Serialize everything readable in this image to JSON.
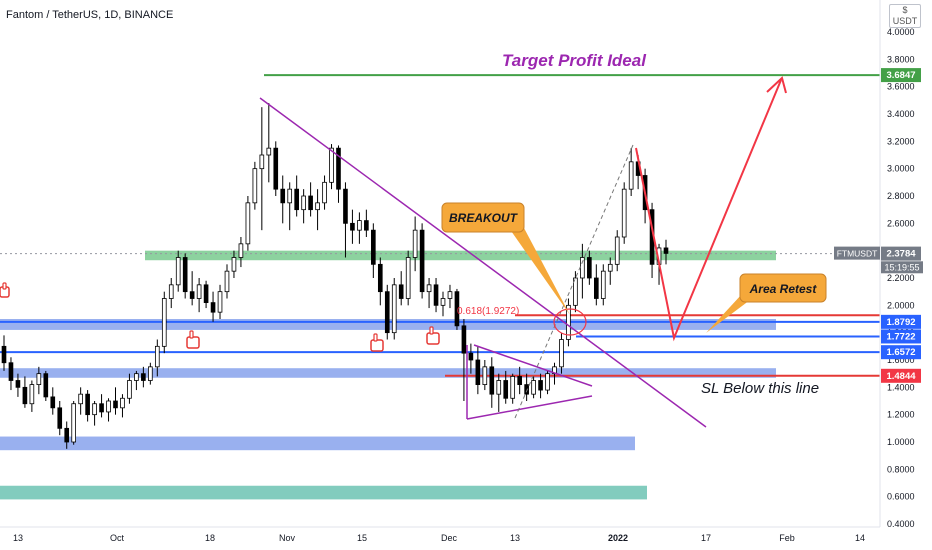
{
  "header": {
    "symbol_title": "Fantom / TetherUS, 1D, BINANCE",
    "currency_badge_top": "$",
    "currency_badge_bottom": "USDT"
  },
  "colors": {
    "up": "#26a69a",
    "down": "#ef5350",
    "candle": "#000000",
    "target_line": "#43a047",
    "retest_line": "#e53935",
    "level_line": "#2962ff",
    "band_blue": "#6d8ee8",
    "band_green": "#5bbf76",
    "band_teal": "#4db6a2",
    "trend_purple": "#9c27b0",
    "arrow_red": "#f23645",
    "callout_orange": "#f5a83a",
    "label_purple": "#9c27b0"
  },
  "chart_data": {
    "type": "candlestick",
    "ylim": [
      0.4,
      4.2
    ],
    "y_ticks": [
      "4.0000",
      "3.8000",
      "3.6000",
      "3.4000",
      "3.2000",
      "3.0000",
      "2.8000",
      "2.6000",
      "2.4000",
      "2.2000",
      "2.0000",
      "1.8000",
      "1.6000",
      "1.4000",
      "1.2000",
      "1.0000",
      "0.8000",
      "0.6000",
      "0.4000"
    ],
    "x_ticks": [
      "13",
      "Oct",
      "18",
      "Nov",
      "15",
      "Dec",
      "13",
      "2022",
      "17",
      "Feb",
      "14"
    ],
    "annotations": {
      "target_title": "Target Profit Ideal",
      "breakout": "BREAKOUT",
      "area_retest": "Area Retest",
      "sl_note": "SL Below this line",
      "fib_label": "0.618(1.9272)",
      "fib_value": 1.9272
    },
    "price_labels": [
      {
        "text": "3.6847",
        "value": 3.6847,
        "color": "#43a047"
      },
      {
        "text": "FTMUSDT",
        "value": 2.3784,
        "color": "#ffffff"
      },
      {
        "text": "2.3784",
        "value": 2.3784,
        "color": "#757b86"
      },
      {
        "text": "15:19:55",
        "value": 2.2784,
        "color": "#757b86"
      },
      {
        "text": "1.8792",
        "value": 1.8792,
        "color": "#2962ff"
      },
      {
        "text": "1.7722",
        "value": 1.7722,
        "color": "#2962ff"
      },
      {
        "text": "1.6572",
        "value": 1.6572,
        "color": "#2962ff"
      },
      {
        "text": "1.4844",
        "value": 1.4844,
        "color": "#f23645"
      }
    ],
    "levels": {
      "target": 3.6847,
      "retest_red": 1.9272,
      "blue_1": 1.8792,
      "blue_2": 1.7722,
      "blue_3": 1.6572,
      "sl_red": 1.4844,
      "current": 2.3784
    },
    "bands": [
      {
        "from": 2.33,
        "to": 2.4,
        "kind": "green"
      },
      {
        "from": 1.82,
        "to": 1.9,
        "kind": "blue"
      },
      {
        "from": 1.47,
        "to": 1.54,
        "kind": "blue"
      },
      {
        "from": 0.94,
        "to": 1.04,
        "kind": "blue"
      },
      {
        "from": 0.58,
        "to": 0.68,
        "kind": "teal"
      }
    ],
    "candles": [
      [
        1.7,
        1.78,
        1.52,
        1.58
      ],
      [
        1.58,
        1.62,
        1.38,
        1.45
      ],
      [
        1.45,
        1.5,
        1.33,
        1.4
      ],
      [
        1.4,
        1.48,
        1.25,
        1.28
      ],
      [
        1.28,
        1.45,
        1.22,
        1.42
      ],
      [
        1.42,
        1.55,
        1.35,
        1.5
      ],
      [
        1.5,
        1.52,
        1.3,
        1.33
      ],
      [
        1.33,
        1.4,
        1.2,
        1.25
      ],
      [
        1.25,
        1.3,
        1.05,
        1.1
      ],
      [
        1.1,
        1.15,
        0.95,
        1.0
      ],
      [
        1.0,
        1.3,
        0.98,
        1.28
      ],
      [
        1.28,
        1.4,
        1.2,
        1.35
      ],
      [
        1.35,
        1.38,
        1.15,
        1.2
      ],
      [
        1.2,
        1.3,
        1.12,
        1.28
      ],
      [
        1.28,
        1.35,
        1.18,
        1.22
      ],
      [
        1.22,
        1.32,
        1.15,
        1.3
      ],
      [
        1.3,
        1.4,
        1.2,
        1.25
      ],
      [
        1.25,
        1.35,
        1.18,
        1.32
      ],
      [
        1.32,
        1.5,
        1.28,
        1.45
      ],
      [
        1.45,
        1.52,
        1.38,
        1.5
      ],
      [
        1.5,
        1.55,
        1.4,
        1.45
      ],
      [
        1.45,
        1.58,
        1.42,
        1.55
      ],
      [
        1.55,
        1.75,
        1.48,
        1.7
      ],
      [
        1.7,
        2.1,
        1.65,
        2.05
      ],
      [
        2.05,
        2.2,
        1.98,
        2.15
      ],
      [
        2.15,
        2.4,
        2.1,
        2.35
      ],
      [
        2.35,
        2.38,
        2.05,
        2.1
      ],
      [
        2.1,
        2.25,
        2.0,
        2.05
      ],
      [
        2.05,
        2.2,
        1.95,
        2.15
      ],
      [
        2.15,
        2.18,
        1.98,
        2.02
      ],
      [
        2.02,
        2.1,
        1.88,
        1.95
      ],
      [
        1.95,
        2.15,
        1.9,
        2.1
      ],
      [
        2.1,
        2.3,
        2.05,
        2.25
      ],
      [
        2.25,
        2.4,
        2.2,
        2.35
      ],
      [
        2.35,
        2.5,
        2.28,
        2.45
      ],
      [
        2.45,
        2.8,
        2.4,
        2.75
      ],
      [
        2.75,
        3.05,
        2.7,
        3.0
      ],
      [
        3.0,
        3.45,
        2.55,
        3.1
      ],
      [
        3.1,
        3.48,
        2.9,
        3.15
      ],
      [
        3.15,
        3.2,
        2.8,
        2.85
      ],
      [
        2.85,
        2.95,
        2.6,
        2.75
      ],
      [
        2.75,
        2.9,
        2.55,
        2.85
      ],
      [
        2.85,
        2.95,
        2.65,
        2.7
      ],
      [
        2.7,
        2.85,
        2.6,
        2.8
      ],
      [
        2.8,
        2.9,
        2.65,
        2.7
      ],
      [
        2.7,
        2.85,
        2.55,
        2.75
      ],
      [
        2.75,
        2.95,
        2.7,
        2.9
      ],
      [
        2.9,
        3.18,
        2.85,
        3.15
      ],
      [
        3.15,
        3.17,
        2.75,
        2.85
      ],
      [
        2.85,
        2.9,
        2.35,
        2.6
      ],
      [
        2.6,
        2.7,
        2.45,
        2.55
      ],
      [
        2.55,
        2.68,
        2.45,
        2.62
      ],
      [
        2.62,
        2.7,
        2.5,
        2.55
      ],
      [
        2.55,
        2.6,
        2.2,
        2.3
      ],
      [
        2.3,
        2.35,
        2.0,
        2.1
      ],
      [
        2.1,
        2.15,
        1.75,
        1.8
      ],
      [
        1.8,
        2.2,
        1.75,
        2.15
      ],
      [
        2.15,
        2.25,
        2.0,
        2.05
      ],
      [
        2.05,
        2.4,
        2.0,
        2.35
      ],
      [
        2.35,
        2.65,
        2.25,
        2.55
      ],
      [
        2.55,
        2.6,
        2.05,
        2.1
      ],
      [
        2.1,
        2.2,
        1.98,
        2.15
      ],
      [
        2.15,
        2.2,
        1.95,
        2.0
      ],
      [
        2.0,
        2.1,
        1.92,
        2.05
      ],
      [
        2.05,
        2.15,
        1.98,
        2.1
      ],
      [
        2.1,
        2.12,
        1.82,
        1.85
      ],
      [
        1.85,
        1.9,
        1.3,
        1.65
      ],
      [
        1.65,
        1.72,
        1.5,
        1.6
      ],
      [
        1.6,
        1.7,
        1.35,
        1.42
      ],
      [
        1.42,
        1.6,
        1.38,
        1.55
      ],
      [
        1.55,
        1.62,
        1.25,
        1.35
      ],
      [
        1.35,
        1.5,
        1.22,
        1.45
      ],
      [
        1.45,
        1.52,
        1.28,
        1.32
      ],
      [
        1.32,
        1.5,
        1.28,
        1.48
      ],
      [
        1.48,
        1.55,
        1.35,
        1.42
      ],
      [
        1.42,
        1.5,
        1.3,
        1.35
      ],
      [
        1.35,
        1.48,
        1.32,
        1.45
      ],
      [
        1.45,
        1.5,
        1.32,
        1.38
      ],
      [
        1.38,
        1.52,
        1.35,
        1.5
      ],
      [
        1.5,
        1.58,
        1.42,
        1.55
      ],
      [
        1.55,
        1.8,
        1.5,
        1.75
      ],
      [
        1.75,
        2.05,
        1.7,
        2.0
      ],
      [
        2.0,
        2.25,
        1.95,
        2.2
      ],
      [
        2.2,
        2.45,
        2.05,
        2.35
      ],
      [
        2.35,
        2.4,
        2.15,
        2.2
      ],
      [
        2.2,
        2.3,
        2.0,
        2.05
      ],
      [
        2.05,
        2.3,
        2.0,
        2.25
      ],
      [
        2.25,
        2.35,
        2.15,
        2.3
      ],
      [
        2.3,
        2.55,
        2.25,
        2.5
      ],
      [
        2.5,
        2.9,
        2.45,
        2.85
      ],
      [
        2.85,
        3.15,
        2.8,
        3.05
      ],
      [
        3.05,
        3.1,
        2.85,
        2.95
      ],
      [
        2.95,
        3.0,
        2.6,
        2.7
      ],
      [
        2.7,
        2.75,
        2.2,
        2.3
      ],
      [
        2.3,
        2.45,
        2.15,
        2.42
      ],
      [
        2.42,
        2.48,
        2.3,
        2.38
      ]
    ]
  }
}
